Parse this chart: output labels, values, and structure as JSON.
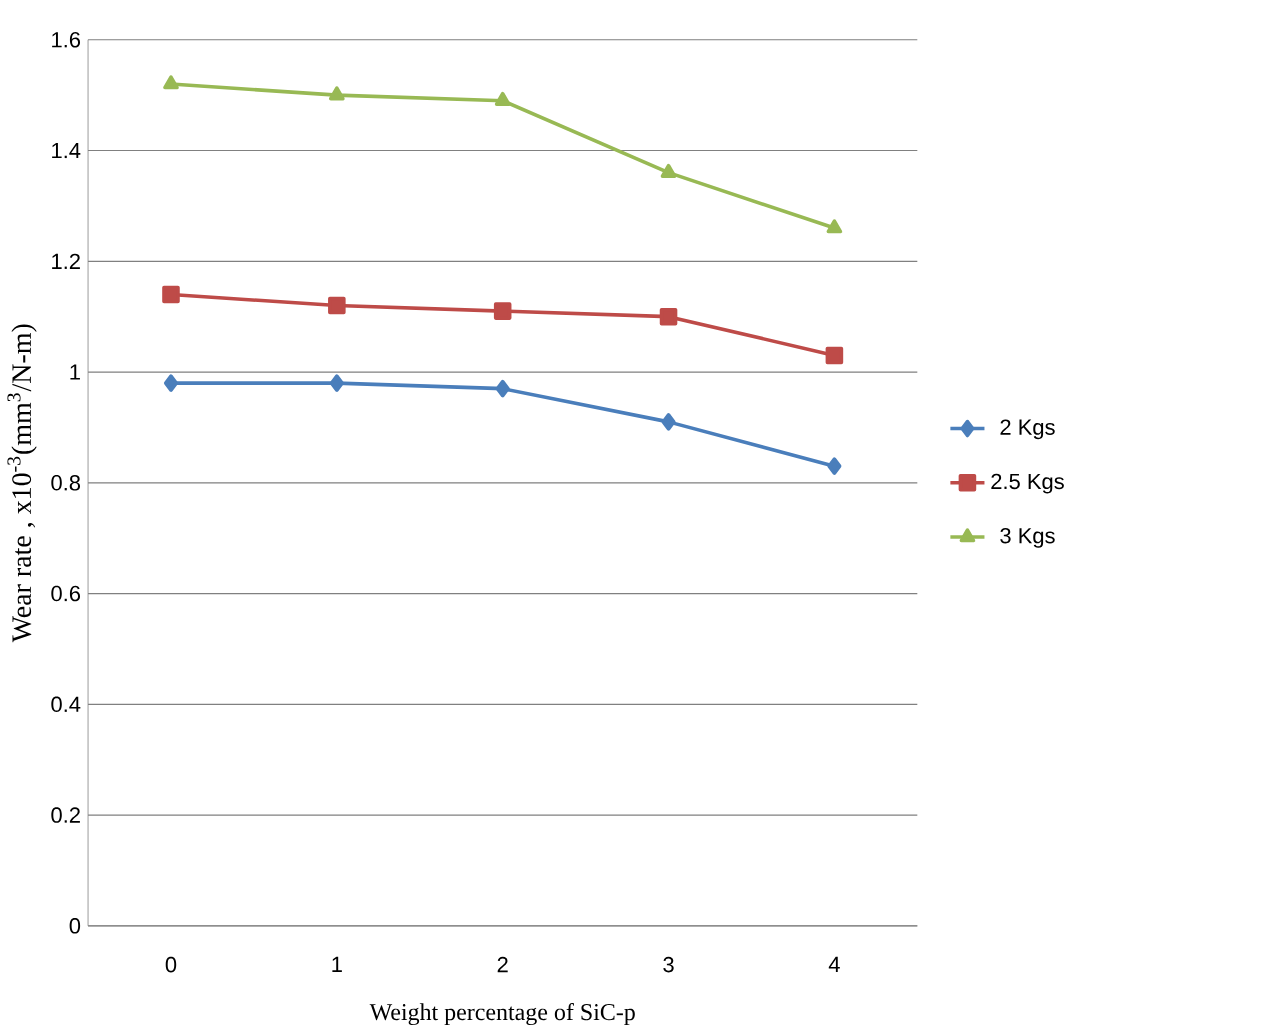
{
  "chart_data": {
    "type": "line",
    "xlabel": "Weight percentage of SiC-p",
    "ylabel": "Wear rate , x10$^{-3}$(mm$^{3}$/N-m)",
    "categories": [
      "0",
      "1",
      "2",
      "3",
      "4"
    ],
    "series": [
      {
        "name": "2 Kgs",
        "color": "#4a7ebb",
        "marker": "diamond",
        "values": [
          0.98,
          0.98,
          0.97,
          0.91,
          0.83
        ]
      },
      {
        "name": "2.5 Kgs",
        "color": "#be4b48",
        "marker": "square",
        "values": [
          1.14,
          1.12,
          1.11,
          1.1,
          1.03
        ]
      },
      {
        "name": "3 Kgs",
        "color": "#98b954",
        "marker": "triangle",
        "values": [
          1.52,
          1.5,
          1.49,
          1.36,
          1.26
        ]
      }
    ],
    "ylim": [
      0,
      1.6
    ],
    "yticks": [
      0,
      0.2,
      0.4,
      0.6,
      0.8,
      1,
      1.2,
      1.4,
      1.6
    ],
    "grid": "y",
    "legend": "right"
  }
}
